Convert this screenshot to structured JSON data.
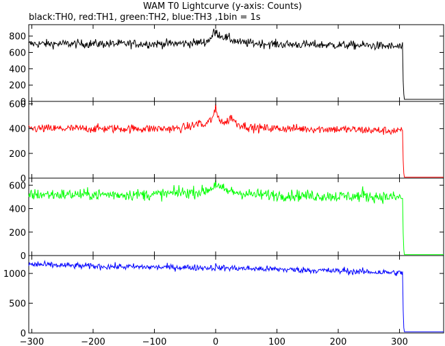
{
  "chart_data": {
    "type": "line",
    "title": "WAM T0 Lightcurve (y-axis: Counts)",
    "subtitle": "black:TH0, red:TH1, green:TH2, blue:TH3 ,1bin = 1s",
    "xlim": [
      -305,
      372
    ],
    "x_ticks": [
      -300,
      -200,
      -100,
      0,
      100,
      200,
      300
    ],
    "grid": false,
    "panels": [
      {
        "name": "TH0",
        "color": "#000000",
        "ylim": [
          0,
          940
        ],
        "y_ticks": [
          0,
          200,
          400,
          600,
          800
        ],
        "noise": 26,
        "points": [
          [
            -305,
            705
          ],
          [
            -100,
            705
          ],
          [
            -40,
            712
          ],
          [
            -15,
            730
          ],
          [
            -5,
            800
          ],
          [
            0,
            845
          ],
          [
            8,
            810
          ],
          [
            20,
            770
          ],
          [
            40,
            720
          ],
          [
            100,
            700
          ],
          [
            200,
            690
          ],
          [
            250,
            685
          ],
          [
            302,
            668
          ],
          [
            305,
            660
          ]
        ],
        "peaks": [
          [
            -3,
            890
          ],
          [
            2,
            875
          ],
          [
            22,
            840
          ]
        ],
        "drop": [
          [
            305,
            660
          ],
          [
            306,
            250
          ],
          [
            307,
            90
          ],
          [
            308,
            25
          ],
          [
            372,
            25
          ]
        ]
      },
      {
        "name": "TH1",
        "color": "#ff0000",
        "ylim": [
          0,
          620
        ],
        "y_ticks": [
          0,
          200,
          400,
          600
        ],
        "noise": 17,
        "points": [
          [
            -305,
            400
          ],
          [
            -60,
            400
          ],
          [
            -35,
            425
          ],
          [
            -28,
            450
          ],
          [
            -20,
            420
          ],
          [
            -8,
            470
          ],
          [
            0,
            530
          ],
          [
            8,
            470
          ],
          [
            15,
            440
          ],
          [
            25,
            490
          ],
          [
            35,
            440
          ],
          [
            60,
            405
          ],
          [
            200,
            395
          ],
          [
            302,
            380
          ],
          [
            305,
            375
          ]
        ],
        "peaks": [
          [
            0,
            610
          ],
          [
            -26,
            465
          ],
          [
            26,
            510
          ]
        ],
        "drop": [
          [
            305,
            375
          ],
          [
            306,
            145
          ],
          [
            307,
            40
          ],
          [
            308,
            8
          ],
          [
            372,
            8
          ]
        ]
      },
      {
        "name": "TH2",
        "color": "#00ff00",
        "ylim": [
          0,
          660
        ],
        "y_ticks": [
          0,
          200,
          400,
          600
        ],
        "noise": 24,
        "points": [
          [
            -305,
            520
          ],
          [
            -100,
            520
          ],
          [
            -20,
            545
          ],
          [
            -5,
            580
          ],
          [
            0,
            610
          ],
          [
            6,
            575
          ],
          [
            20,
            550
          ],
          [
            60,
            520
          ],
          [
            200,
            505
          ],
          [
            250,
            505
          ],
          [
            302,
            495
          ],
          [
            305,
            490
          ]
        ],
        "peaks": [
          [
            0,
            650
          ],
          [
            240,
            590
          ],
          [
            -60,
            600
          ]
        ],
        "drop": [
          [
            305,
            490
          ],
          [
            306,
            195
          ],
          [
            307,
            50
          ],
          [
            308,
            8
          ],
          [
            372,
            8
          ]
        ]
      },
      {
        "name": "TH3",
        "color": "#0000ff",
        "ylim": [
          0,
          1300
        ],
        "y_ticks": [
          0,
          500,
          1000
        ],
        "noise": 26,
        "points": [
          [
            -305,
            1150
          ],
          [
            -200,
            1120
          ],
          [
            -100,
            1105
          ],
          [
            0,
            1095
          ],
          [
            100,
            1070
          ],
          [
            200,
            1040
          ],
          [
            302,
            1010
          ],
          [
            305,
            1005
          ]
        ],
        "peaks": [
          [
            0,
            1170
          ],
          [
            -290,
            1200
          ],
          [
            210,
            1110
          ]
        ],
        "drop": [
          [
            305,
            1005
          ],
          [
            306,
            390
          ],
          [
            307,
            90
          ],
          [
            308,
            20
          ],
          [
            372,
            20
          ]
        ]
      }
    ]
  }
}
